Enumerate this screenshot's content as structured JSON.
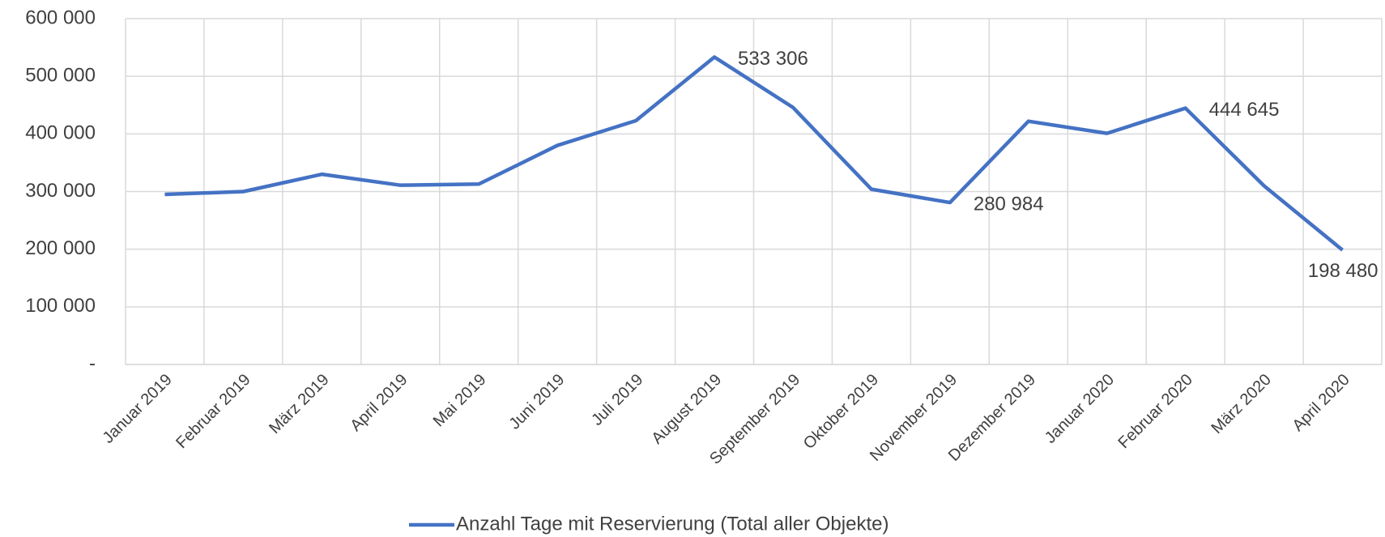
{
  "chart_data": {
    "type": "line",
    "categories": [
      "Januar 2019",
      "Februar 2019",
      "März 2019",
      "April 2019",
      "Mai 2019",
      "Juni 2019",
      "Juli 2019",
      "August 2019",
      "September 2019",
      "Oktober 2019",
      "November 2019",
      "Dezember 2019",
      "Januar 2020",
      "Februar 2020",
      "März 2020",
      "April 2020"
    ],
    "series": [
      {
        "name": "Anzahl Tage mit Reservierung (Total aller Objekte)",
        "color": "#4472c4",
        "values": [
          295000,
          300000,
          330000,
          311000,
          313000,
          380000,
          423000,
          533306,
          446000,
          304000,
          280984,
          422000,
          401000,
          444645,
          310000,
          198480
        ],
        "value_labels": [
          null,
          null,
          null,
          null,
          null,
          null,
          null,
          "533 306",
          null,
          null,
          "280 984",
          null,
          null,
          "444 645",
          null,
          "198 480"
        ]
      }
    ],
    "ylim": [
      0,
      600000
    ],
    "yticks": [
      {
        "value": 0,
        "label": "-"
      },
      {
        "value": 100000,
        "label": "100 000"
      },
      {
        "value": 200000,
        "label": "200 000"
      },
      {
        "value": 300000,
        "label": "300 000"
      },
      {
        "value": 400000,
        "label": "400 000"
      },
      {
        "value": 500000,
        "label": "500 000"
      },
      {
        "value": 600000,
        "label": "600 000"
      }
    ],
    "grid": true,
    "legend": "bottom"
  }
}
